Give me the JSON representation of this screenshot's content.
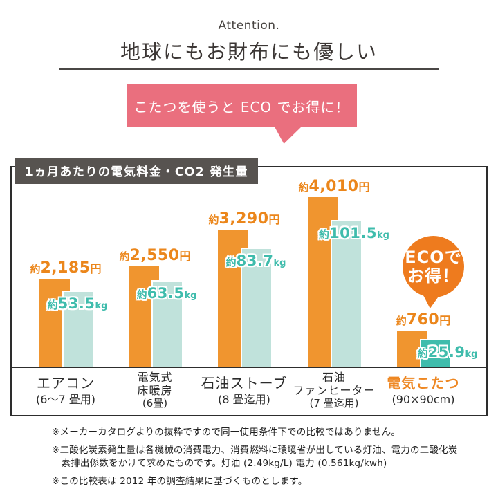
{
  "header": {
    "eyebrow": "Attention.",
    "title": "地球にもお財布にも優しい"
  },
  "callout": {
    "text": "こたつを使うと ECO でお得に！",
    "bg": "#EA6F7E"
  },
  "chart": {
    "title": "1ヵ月あたりの電気料金・CO2 発生量",
    "badge": {
      "line1": "ECOで",
      "line2": "お得！"
    },
    "colors": {
      "yen_bar": "#F0952F",
      "kg_bar": "#C0E2DB",
      "kg_bar_highlight": "#3FBCAC",
      "yen_text": "#EB861B",
      "kg_text": "#3FBCAC",
      "accent_label": "#EE8722",
      "badge": "#EE7B1E",
      "frame": "#2d2d2d",
      "title_box_bg": "#575350"
    },
    "groups": [
      {
        "category_lines": [
          {
            "text": "エアコン",
            "style": "main"
          },
          {
            "text": "(6～7 畳用)",
            "style": "sub"
          }
        ],
        "yen": {
          "prefix": "約",
          "num": "2,185",
          "unit": "円",
          "value": 2185
        },
        "kg": {
          "prefix": "約",
          "num": "53.5",
          "unit": "kg",
          "value": 53.5
        },
        "layout": {
          "yen_h": 127,
          "kg_h": 110,
          "kg_dx": 0
        },
        "highlight": false
      },
      {
        "category_lines": [
          {
            "text": "電気式",
            "style": "small"
          },
          {
            "text": "床暖房",
            "style": "small"
          },
          {
            "text": "(6畳)",
            "style": "sub-small"
          }
        ],
        "yen": {
          "prefix": "約",
          "num": "2,550",
          "unit": "円",
          "value": 2550
        },
        "kg": {
          "prefix": "約",
          "num": "63.5",
          "unit": "kg",
          "value": 63.5
        },
        "layout": {
          "yen_h": 145,
          "kg_h": 125,
          "kg_dx": 0
        },
        "highlight": false
      },
      {
        "category_lines": [
          {
            "text": "石油ストーブ",
            "style": "main"
          },
          {
            "text": "(8 畳迄用)",
            "style": "sub"
          }
        ],
        "yen": {
          "prefix": "約",
          "num": "3,290",
          "unit": "円",
          "value": 3290
        },
        "kg": {
          "prefix": "約",
          "num": "83.7",
          "unit": "kg",
          "value": 83.7
        },
        "layout": {
          "yen_h": 198,
          "kg_h": 172,
          "kg_dx": 0
        },
        "highlight": false
      },
      {
        "category_lines": [
          {
            "text": "石油",
            "style": "small"
          },
          {
            "text": "ファンヒーター",
            "style": "small"
          },
          {
            "text": "(7 畳迄用)",
            "style": "sub-small"
          }
        ],
        "yen": {
          "prefix": "約",
          "num": "4,010",
          "unit": "円",
          "value": 4010
        },
        "kg": {
          "prefix": "約",
          "num": "101.5",
          "unit": "kg",
          "value": 101.5
        },
        "layout": {
          "yen_h": 245,
          "kg_h": 212,
          "kg_dx": 12
        },
        "highlight": false
      },
      {
        "category_lines": [
          {
            "text": "電気こたつ",
            "style": "main-accent"
          },
          {
            "text": "(90×90cm)",
            "style": "sub"
          }
        ],
        "yen": {
          "prefix": "約",
          "num": "760",
          "unit": "円",
          "value": 760
        },
        "kg": {
          "prefix": "約",
          "num": "25.9",
          "unit": "kg",
          "value": 25.9
        },
        "layout": {
          "yen_h": 52,
          "kg_h": 40,
          "kg_dx": 18
        },
        "highlight": true
      }
    ]
  },
  "chart_data": {
    "type": "bar",
    "title": "1ヵ月あたりの電気料金・CO2 発生量",
    "categories": [
      "エアコン(6～7畳用)",
      "電気式床暖房(6畳)",
      "石油ストーブ(8畳迄用)",
      "石油ファンヒーター(7畳迄用)",
      "電気こたつ(90×90cm)"
    ],
    "series": [
      {
        "name": "電気料金（円／月）",
        "unit": "円",
        "values": [
          2185,
          2550,
          3290,
          4010,
          760
        ],
        "labels": [
          "約2,185円",
          "約2,550円",
          "約3,290円",
          "約4,010円",
          "約760円"
        ],
        "color": "#F0952F"
      },
      {
        "name": "CO2発生量（kg／月）",
        "unit": "kg",
        "values": [
          53.5,
          63.5,
          83.7,
          101.5,
          25.9
        ],
        "labels": [
          "約53.5kg",
          "約63.5kg",
          "約83.7kg",
          "約101.5kg",
          "約25.9kg"
        ],
        "color": "#C0E2DB",
        "highlight_color_last": "#3FBCAC"
      }
    ],
    "legend": "none",
    "grid": false,
    "annotations": [
      "ECOでお得！",
      "こたつを使うと ECO でお得に！"
    ]
  },
  "footnotes": [
    "※メーカーカタログよりの抜粋ですので同一使用条件下での比較ではありません。",
    "※二酸化炭素発生量は各機械の消費電力、消費燃料に環境省が出している灯油、電力の二酸化炭素排出係数をかけて求めたものです。灯油 (2.49kg/L) 電力 (0.561kg/kwh)",
    "※この比較表は 2012 年の調査結果に基づくものとします。"
  ]
}
